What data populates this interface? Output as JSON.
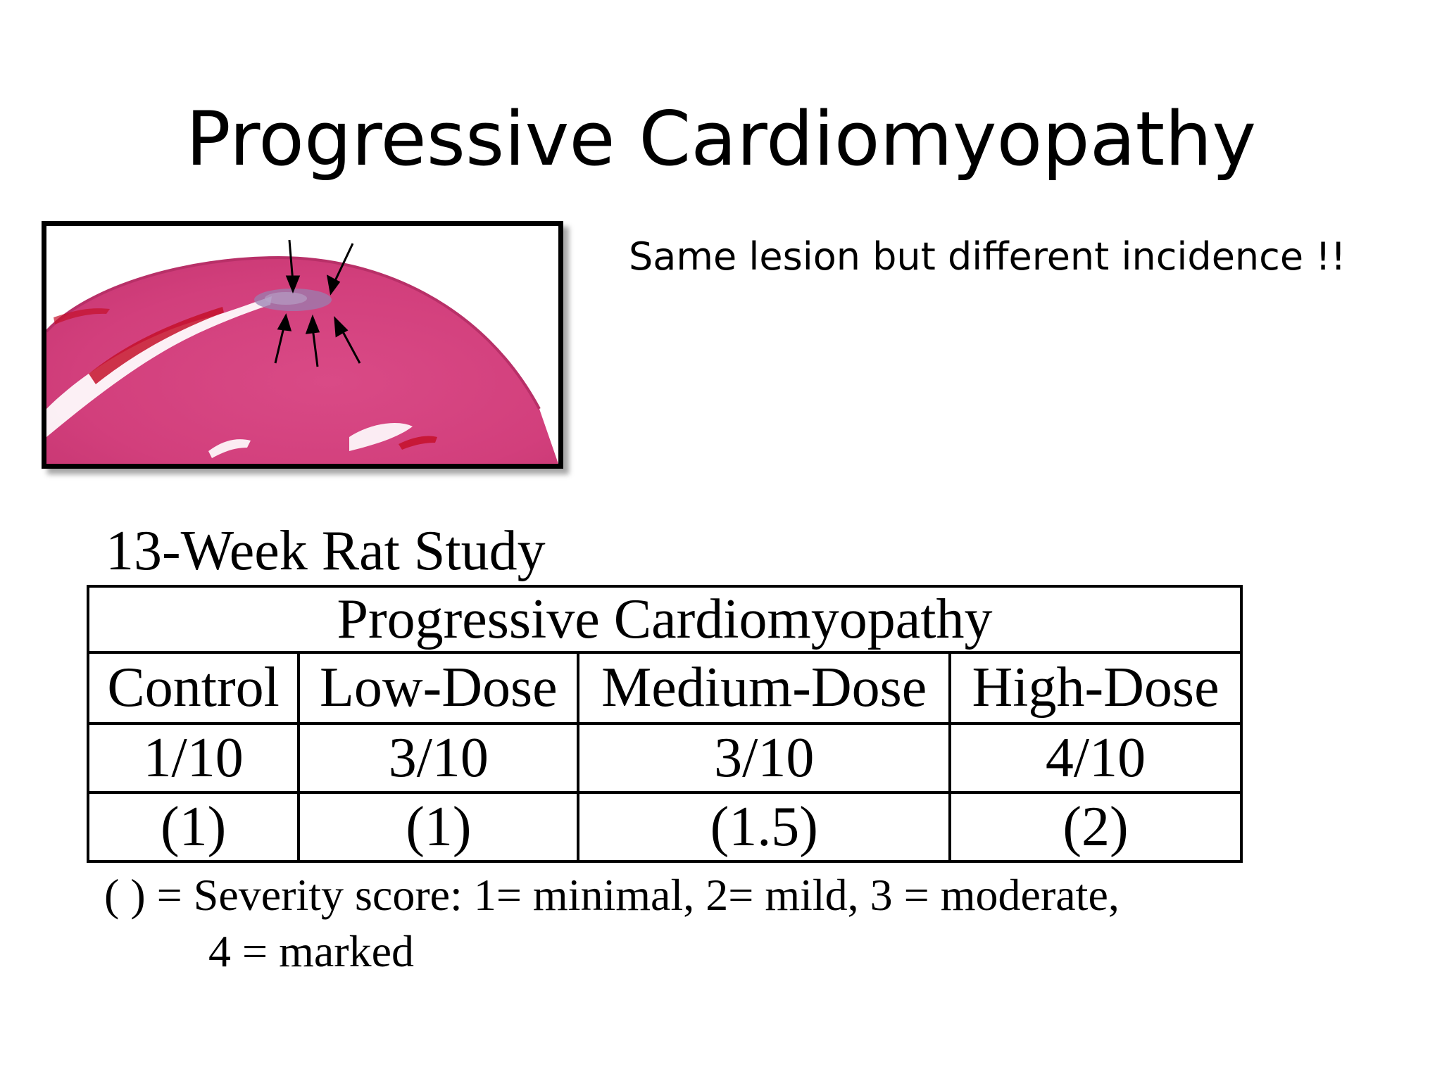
{
  "slide": {
    "title": "Progressive Cardiomyopathy",
    "subtitle": "Same lesion but different incidence !!"
  },
  "image": {
    "description_icon": "histology-micrograph-icon",
    "tissue_color": "#d9407a",
    "arrow_color": "#000000"
  },
  "study": {
    "caption": "13-Week Rat Study",
    "table": {
      "header": "Progressive Cardiomyopathy",
      "groups": [
        "Control",
        "Low-Dose",
        "Medium-Dose",
        "High-Dose"
      ],
      "incidence": [
        "1/10",
        "3/10",
        "3/10",
        "4/10"
      ],
      "severity": [
        "(1)",
        "(1)",
        "(1.5)",
        "(2)"
      ]
    },
    "footnote": {
      "line1": "( ) = Severity score: 1= minimal, 2= mild, 3 = moderate,",
      "line2": "4 = marked"
    }
  }
}
